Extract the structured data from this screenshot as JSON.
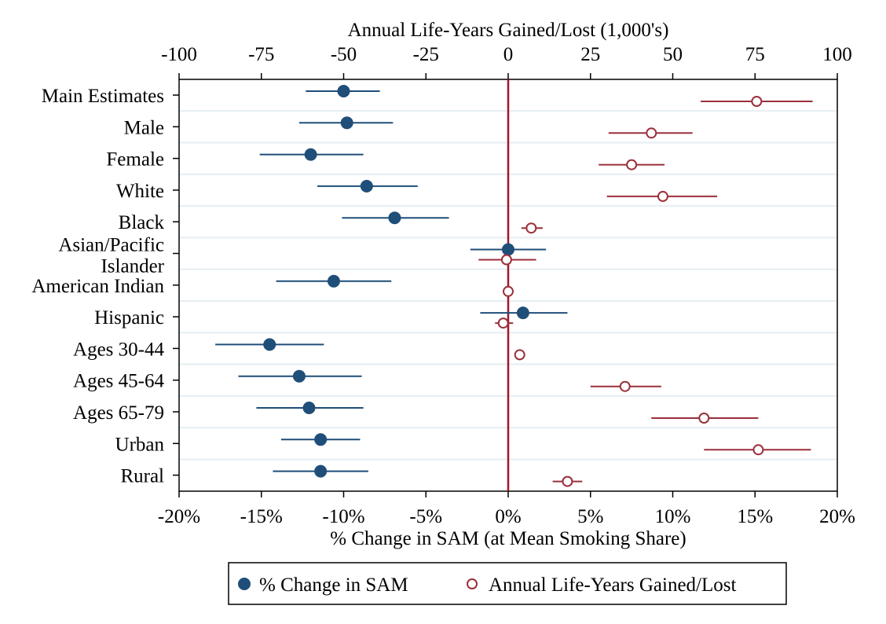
{
  "chart_data": {
    "type": "scatter",
    "subtype": "forest-plot",
    "top_axis": {
      "label": "Annual Life-Years Gained/Lost (1,000's)",
      "ticks": [
        "-100",
        "-75",
        "-50",
        "-25",
        "0",
        "25",
        "50",
        "75",
        "100"
      ],
      "range": [
        -100,
        100
      ]
    },
    "bottom_axis": {
      "label": "% Change in SAM (at Mean Smoking Share)",
      "ticks": [
        "-20%",
        "-15%",
        "-10%",
        "-5%",
        "0%",
        "5%",
        "10%",
        "15%",
        "20%"
      ],
      "range": [
        -20,
        20
      ]
    },
    "categories": [
      [
        "Main Estimates"
      ],
      [
        "Male"
      ],
      [
        "Female"
      ],
      [
        "White"
      ],
      [
        "Black"
      ],
      [
        "Asian/Pacific",
        "Islander"
      ],
      [
        "American Indian"
      ],
      [
        "Hispanic"
      ],
      [
        "Ages 30-44"
      ],
      [
        "Ages 45-64"
      ],
      [
        "Ages 65-79"
      ],
      [
        "Urban"
      ],
      [
        "Rural"
      ]
    ],
    "series": [
      {
        "name": "% Change in SAM",
        "axis": "bottom",
        "marker": "filled-circle",
        "color": "#1f4e79",
        "points": [
          {
            "est": -10.0,
            "lo": -12.3,
            "hi": -7.8
          },
          {
            "est": -9.8,
            "lo": -12.7,
            "hi": -7.0
          },
          {
            "est": -12.0,
            "lo": -15.1,
            "hi": -8.8
          },
          {
            "est": -8.6,
            "lo": -11.6,
            "hi": -5.5
          },
          {
            "est": -6.9,
            "lo": -10.1,
            "hi": -3.6
          },
          {
            "est": 0.0,
            "lo": -2.3,
            "hi": 2.3
          },
          {
            "est": -10.6,
            "lo": -14.1,
            "hi": -7.1
          },
          {
            "est": 0.9,
            "lo": -1.7,
            "hi": 3.6
          },
          {
            "est": -14.5,
            "lo": -17.8,
            "hi": -11.2
          },
          {
            "est": -12.7,
            "lo": -16.4,
            "hi": -8.9
          },
          {
            "est": -12.1,
            "lo": -15.3,
            "hi": -8.8
          },
          {
            "est": -11.4,
            "lo": -13.8,
            "hi": -9.0
          },
          {
            "est": -11.4,
            "lo": -14.3,
            "hi": -8.5
          }
        ]
      },
      {
        "name": "Annual Life-Years Gained/Lost",
        "axis": "top",
        "marker": "hollow-circle",
        "color": "#9b2f3b",
        "points": [
          {
            "est": 75.5,
            "lo": 58.5,
            "hi": 92.5
          },
          {
            "est": 43.5,
            "lo": 30.5,
            "hi": 56.0
          },
          {
            "est": 37.5,
            "lo": 27.5,
            "hi": 47.5
          },
          {
            "est": 47.0,
            "lo": 30.0,
            "hi": 63.5
          },
          {
            "est": 7.0,
            "lo": 4.0,
            "hi": 10.5
          },
          {
            "est": -0.5,
            "lo": -9.0,
            "hi": 8.5
          },
          {
            "est": 0.0,
            "lo": 0.0,
            "hi": 0.0
          },
          {
            "est": -1.5,
            "lo": -4.0,
            "hi": 1.5
          },
          {
            "est": 3.5,
            "lo": 3.5,
            "hi": 3.5
          },
          {
            "est": 35.5,
            "lo": 25.0,
            "hi": 46.5
          },
          {
            "est": 59.5,
            "lo": 43.5,
            "hi": 76.0
          },
          {
            "est": 76.0,
            "lo": 59.5,
            "hi": 92.0
          },
          {
            "est": 18.0,
            "lo": 13.5,
            "hi": 22.5
          }
        ]
      }
    ],
    "reference_line": {
      "value": 0,
      "color": "#a3162c"
    },
    "legend": {
      "placement": "bottom-center",
      "items": [
        "% Change in SAM",
        "Annual Life-Years Gained/Lost"
      ]
    }
  }
}
